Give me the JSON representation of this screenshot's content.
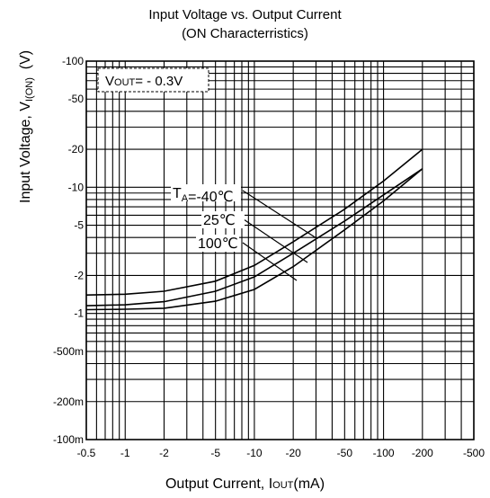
{
  "chart_data": {
    "type": "line",
    "title": "Input Voltage vs. Output Current",
    "subtitle": "(ON Characterristics)",
    "xlabel_main": "Output Current, I",
    "xlabel_sub": "OUT",
    "xlabel_unit": "(mA)",
    "ylabel_main": "Input Voltage, V",
    "ylabel_sub": "I(ON)",
    "ylabel_unit": "(V)",
    "x_scale": "log",
    "y_scale": "log",
    "xlim": [
      -0.5,
      -500
    ],
    "ylim": [
      -0.1,
      -100
    ],
    "x_ticks": [
      {
        "v": -0.5,
        "label": "-0.5"
      },
      {
        "v": -1,
        "label": "-1"
      },
      {
        "v": -2,
        "label": "-2"
      },
      {
        "v": -5,
        "label": "-5"
      },
      {
        "v": -10,
        "label": "-10"
      },
      {
        "v": -20,
        "label": "-20"
      },
      {
        "v": -50,
        "label": "-50"
      },
      {
        "v": -100,
        "label": "-100"
      },
      {
        "v": -200,
        "label": "-200"
      },
      {
        "v": -500,
        "label": "-500"
      }
    ],
    "y_ticks": [
      {
        "v": -100,
        "label": "-100"
      },
      {
        "v": -50,
        "label": "-50"
      },
      {
        "v": -20,
        "label": "-20"
      },
      {
        "v": -10,
        "label": "-10"
      },
      {
        "v": -5,
        "label": "-5"
      },
      {
        "v": -2,
        "label": "-2"
      },
      {
        "v": -1,
        "label": "-1"
      },
      {
        "v": -0.5,
        "label": "-500m"
      },
      {
        "v": -0.2,
        "label": "-200m"
      },
      {
        "v": -0.1,
        "label": "-100m"
      }
    ],
    "grid": true,
    "condition": "VOUT= - 0.3V",
    "condition_main": "V",
    "condition_sub": "OUT",
    "condition_rest": "= - 0.3V",
    "series": [
      {
        "name": "TA=-40℃",
        "label_main": "T",
        "label_sub": "A",
        "label_rest": "=-40℃",
        "x": [
          -0.5,
          -1,
          -2,
          -5,
          -10,
          -20,
          -50,
          -100,
          -200
        ],
        "y": [
          -1.4,
          -1.42,
          -1.5,
          -1.8,
          -2.4,
          -3.7,
          -6.7,
          -11.2,
          -20
        ]
      },
      {
        "name": "25℃",
        "label_main": "25℃",
        "label_sub": "",
        "label_rest": "",
        "x": [
          -0.5,
          -1,
          -2,
          -5,
          -10,
          -20,
          -50,
          -100,
          -200
        ],
        "y": [
          -1.15,
          -1.17,
          -1.24,
          -1.5,
          -1.95,
          -3.0,
          -5.4,
          -8.7,
          -14
        ]
      },
      {
        "name": "100℃",
        "label_main": "100℃",
        "label_sub": "",
        "label_rest": "",
        "x": [
          -0.5,
          -1,
          -2,
          -5,
          -10,
          -20,
          -50,
          -100,
          -200
        ],
        "y": [
          -1.07,
          -1.08,
          -1.1,
          -1.25,
          -1.55,
          -2.35,
          -4.6,
          -7.8,
          -14
        ]
      }
    ]
  }
}
